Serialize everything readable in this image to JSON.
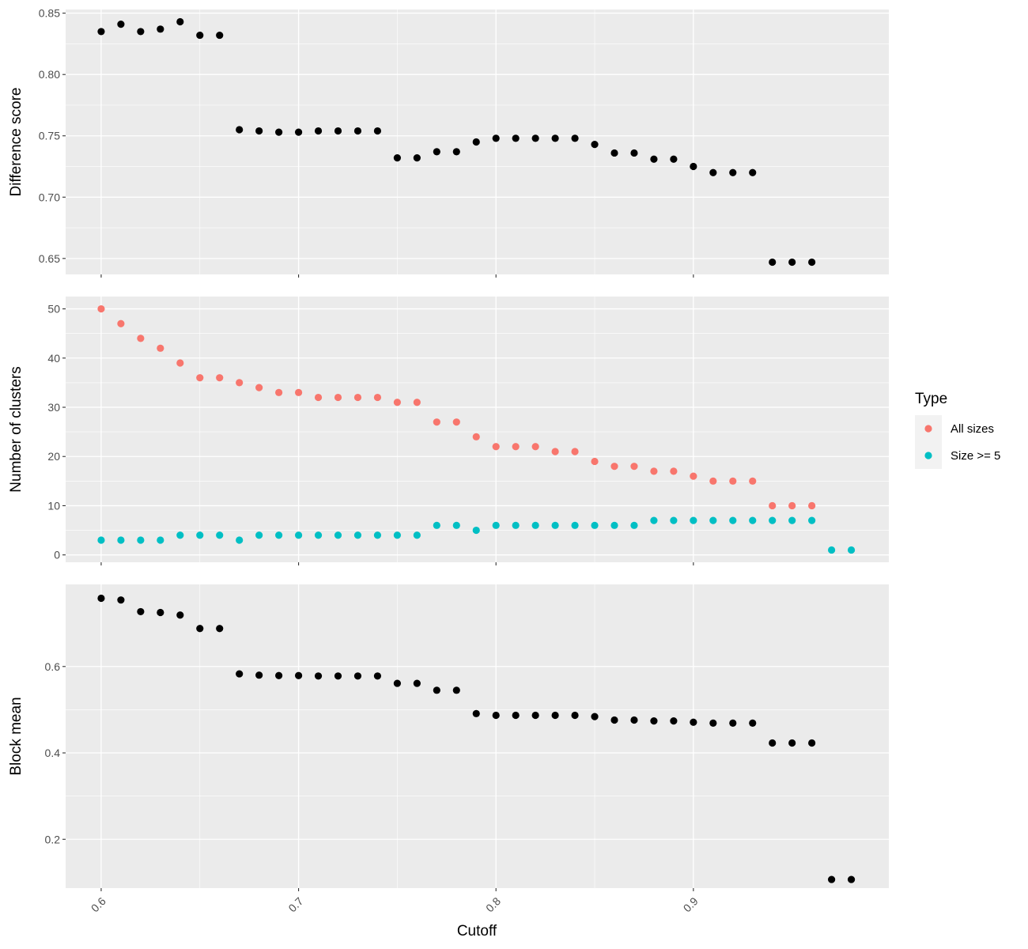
{
  "chart_data": {
    "type": "scatter",
    "colors": {
      "panel_bg": "#ebebeb",
      "grid_major": "#ffffff",
      "point_default": "#000000",
      "all_sizes": "#f8766d",
      "size_ge_5": "#00bfc4",
      "tick_text": "#4d4d4d"
    },
    "xlabel": "Cutoff",
    "xlim": [
      0.582,
      0.999
    ],
    "x_ticks": [
      0.6,
      0.7,
      0.8,
      0.9
    ],
    "x_tick_labels": [
      "0.6",
      "0.7",
      "0.8",
      "0.9"
    ],
    "grid": true,
    "legend": {
      "title": "Type",
      "position": "right",
      "entries": [
        {
          "label": "All sizes",
          "color": "#f8766d"
        },
        {
          "label": "Size >= 5",
          "color": "#00bfc4"
        }
      ]
    },
    "panels": [
      {
        "ylabel": "Difference score",
        "ylim": [
          0.637,
          0.853
        ],
        "y_ticks": [
          0.65,
          0.7,
          0.75,
          0.8,
          0.85
        ],
        "y_tick_labels": [
          "0.65",
          "0.70",
          "0.75",
          "0.80",
          "0.85"
        ],
        "series": [
          {
            "color": "#000000",
            "x": [
              0.6,
              0.61,
              0.62,
              0.63,
              0.64,
              0.65,
              0.66,
              0.67,
              0.68,
              0.69,
              0.7,
              0.71,
              0.72,
              0.73,
              0.74,
              0.75,
              0.76,
              0.77,
              0.78,
              0.79,
              0.8,
              0.81,
              0.82,
              0.83,
              0.84,
              0.85,
              0.86,
              0.87,
              0.88,
              0.89,
              0.9,
              0.91,
              0.92,
              0.93,
              0.94,
              0.95,
              0.96
            ],
            "y": [
              0.835,
              0.841,
              0.835,
              0.837,
              0.843,
              0.832,
              0.832,
              0.755,
              0.754,
              0.753,
              0.753,
              0.754,
              0.754,
              0.754,
              0.754,
              0.732,
              0.732,
              0.737,
              0.737,
              0.745,
              0.748,
              0.748,
              0.748,
              0.748,
              0.748,
              0.743,
              0.736,
              0.736,
              0.731,
              0.731,
              0.725,
              0.72,
              0.72,
              0.72,
              0.647,
              0.647,
              0.647
            ]
          }
        ]
      },
      {
        "ylabel": "Number of clusters",
        "ylim": [
          -1.5,
          52.5
        ],
        "y_ticks": [
          0,
          10,
          20,
          30,
          40,
          50
        ],
        "y_tick_labels": [
          "0",
          "10",
          "20",
          "30",
          "40",
          "50"
        ],
        "series": [
          {
            "name": "All sizes",
            "color": "#f8766d",
            "x": [
              0.6,
              0.61,
              0.62,
              0.63,
              0.64,
              0.65,
              0.66,
              0.67,
              0.68,
              0.69,
              0.7,
              0.71,
              0.72,
              0.73,
              0.74,
              0.75,
              0.76,
              0.77,
              0.78,
              0.79,
              0.8,
              0.81,
              0.82,
              0.83,
              0.84,
              0.85,
              0.86,
              0.87,
              0.88,
              0.89,
              0.9,
              0.91,
              0.92,
              0.93,
              0.94,
              0.95,
              0.96
            ],
            "y": [
              50,
              47,
              44,
              42,
              39,
              36,
              36,
              35,
              34,
              33,
              33,
              32,
              32,
              32,
              32,
              31,
              31,
              27,
              27,
              24,
              22,
              22,
              22,
              21,
              21,
              19,
              18,
              18,
              17,
              17,
              16,
              15,
              15,
              15,
              10,
              10,
              10
            ]
          },
          {
            "name": "Size >= 5",
            "color": "#00bfc4",
            "x": [
              0.6,
              0.61,
              0.62,
              0.63,
              0.64,
              0.65,
              0.66,
              0.67,
              0.68,
              0.69,
              0.7,
              0.71,
              0.72,
              0.73,
              0.74,
              0.75,
              0.76,
              0.77,
              0.78,
              0.79,
              0.8,
              0.81,
              0.82,
              0.83,
              0.84,
              0.85,
              0.86,
              0.87,
              0.88,
              0.89,
              0.9,
              0.91,
              0.92,
              0.93,
              0.94,
              0.95,
              0.96,
              0.97,
              0.98
            ],
            "y": [
              3,
              3,
              3,
              3,
              4,
              4,
              4,
              3,
              4,
              4,
              4,
              4,
              4,
              4,
              4,
              4,
              4,
              6,
              6,
              5,
              6,
              6,
              6,
              6,
              6,
              6,
              6,
              6,
              7,
              7,
              7,
              7,
              7,
              7,
              7,
              7,
              7,
              1,
              1
            ]
          }
        ]
      },
      {
        "ylabel": "Block mean",
        "ylim": [
          0.087,
          0.79
        ],
        "y_ticks": [
          0.2,
          0.4,
          0.6
        ],
        "y_tick_labels": [
          "0.2",
          "0.4",
          "0.6"
        ],
        "series": [
          {
            "color": "#000000",
            "x": [
              0.6,
              0.61,
              0.62,
              0.63,
              0.64,
              0.65,
              0.66,
              0.67,
              0.68,
              0.69,
              0.7,
              0.71,
              0.72,
              0.73,
              0.74,
              0.75,
              0.76,
              0.77,
              0.78,
              0.79,
              0.8,
              0.81,
              0.82,
              0.83,
              0.84,
              0.85,
              0.86,
              0.87,
              0.88,
              0.89,
              0.9,
              0.91,
              0.92,
              0.93,
              0.94,
              0.95,
              0.96,
              0.97,
              0.98
            ],
            "y": [
              0.758,
              0.754,
              0.727,
              0.725,
              0.719,
              0.688,
              0.688,
              0.583,
              0.58,
              0.579,
              0.579,
              0.578,
              0.578,
              0.578,
              0.578,
              0.561,
              0.561,
              0.545,
              0.545,
              0.491,
              0.487,
              0.487,
              0.487,
              0.487,
              0.487,
              0.484,
              0.476,
              0.476,
              0.474,
              0.474,
              0.471,
              0.469,
              0.469,
              0.469,
              0.423,
              0.423,
              0.423,
              0.107,
              0.107
            ]
          }
        ]
      }
    ]
  }
}
